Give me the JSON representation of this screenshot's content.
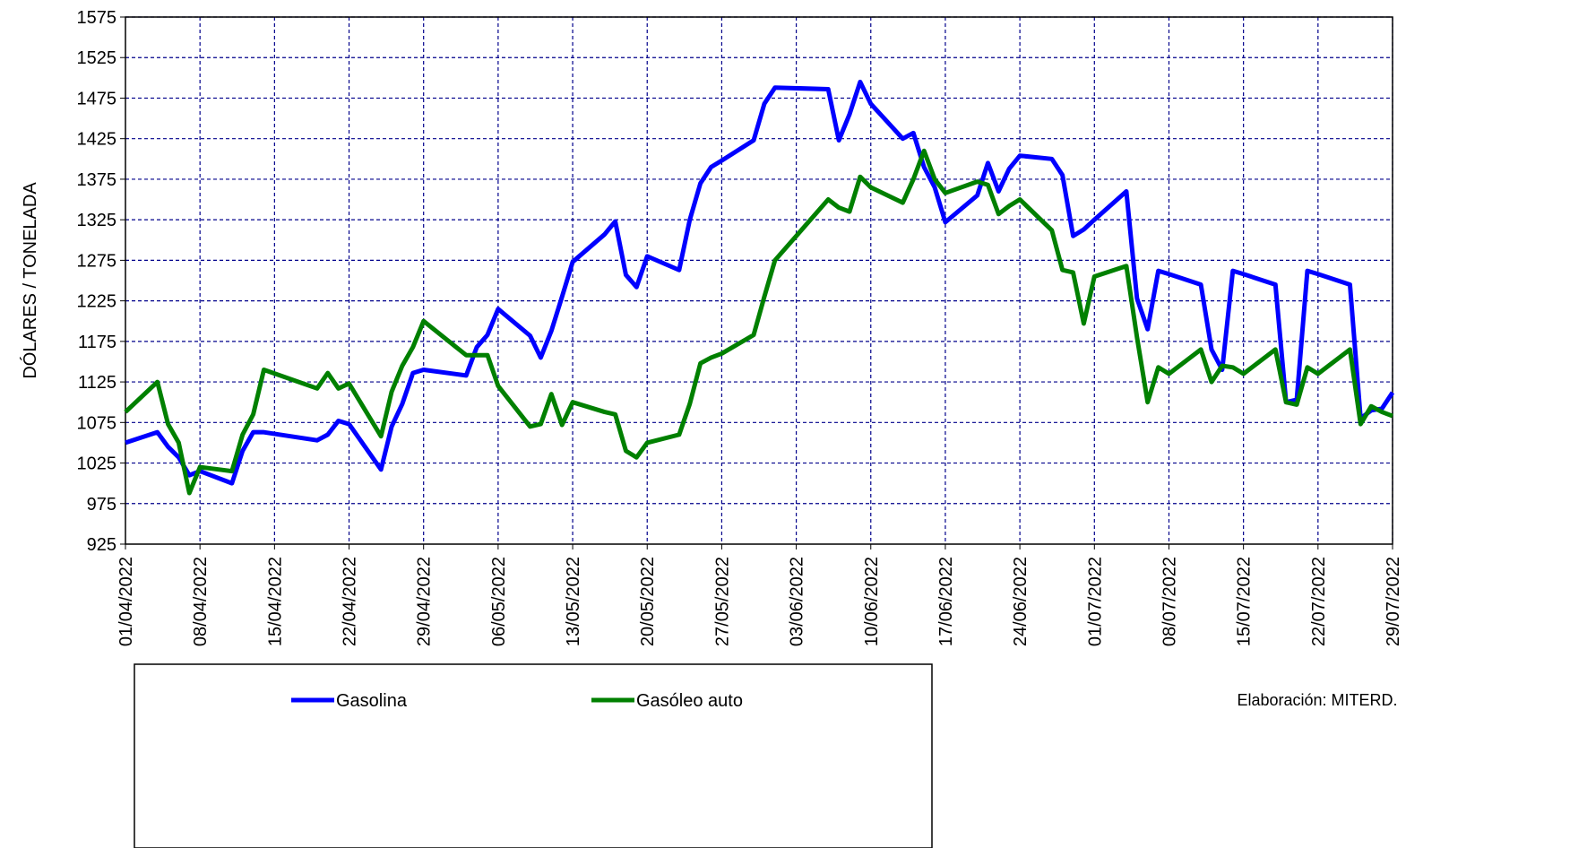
{
  "chart_data": {
    "type": "line",
    "y_label": "DÓLARES / TONELADA",
    "note": "Elaboración:  MITERD.",
    "x": [
      "01/04/2022",
      "04/04/2022",
      "05/04/2022",
      "06/04/2022",
      "07/04/2022",
      "08/04/2022",
      "11/04/2022",
      "12/04/2022",
      "13/04/2022",
      "14/04/2022",
      "19/04/2022",
      "20/04/2022",
      "21/04/2022",
      "22/04/2022",
      "25/04/2022",
      "26/04/2022",
      "27/04/2022",
      "28/04/2022",
      "29/04/2022",
      "03/05/2022",
      "04/05/2022",
      "05/05/2022",
      "06/05/2022",
      "09/05/2022",
      "10/05/2022",
      "11/05/2022",
      "12/05/2022",
      "13/05/2022",
      "16/05/2022",
      "17/05/2022",
      "18/05/2022",
      "19/05/2022",
      "20/05/2022",
      "23/05/2022",
      "24/05/2022",
      "25/05/2022",
      "26/05/2022",
      "27/05/2022",
      "30/05/2022",
      "31/05/2022",
      "01/06/2022",
      "06/06/2022",
      "07/06/2022",
      "08/06/2022",
      "09/06/2022",
      "10/06/2022",
      "13/06/2022",
      "14/06/2022",
      "15/06/2022",
      "16/06/2022",
      "17/06/2022",
      "20/06/2022",
      "21/06/2022",
      "22/06/2022",
      "23/06/2022",
      "24/06/2022",
      "27/06/2022",
      "28/06/2022",
      "29/06/2022",
      "30/06/2022",
      "01/07/2022",
      "04/07/2022",
      "05/07/2022",
      "06/07/2022",
      "07/07/2022",
      "08/07/2022",
      "11/07/2022",
      "12/07/2022",
      "13/07/2022",
      "14/07/2022",
      "15/07/2022",
      "18/07/2022",
      "19/07/2022",
      "20/07/2022",
      "21/07/2022",
      "22/07/2022",
      "25/07/2022",
      "26/07/2022",
      "27/07/2022",
      "28/07/2022",
      "29/07/2022"
    ],
    "series": [
      {
        "name": "Gasolina",
        "color": "#0000ff",
        "values": [
          1050,
          1063,
          1045,
          1032,
          1010,
          1015,
          1000,
          1040,
          1063,
          1063,
          1053,
          1060,
          1077,
          1073,
          1017,
          1070,
          1098,
          1136,
          1140,
          1133,
          1168,
          1183,
          1215,
          1182,
          1155,
          1188,
          1230,
          1273,
          1307,
          1323,
          1257,
          1242,
          1280,
          1263,
          1325,
          1370,
          1390,
          1398,
          1423,
          1468,
          1488,
          1486,
          1423,
          1455,
          1495,
          1468,
          1425,
          1432,
          1390,
          1365,
          1322,
          1355,
          1395,
          1360,
          1388,
          1404,
          1400,
          1380,
          1305,
          1313,
          1325,
          1360,
          1228,
          1190,
          1262,
          1258,
          1245,
          1165,
          1140,
          1262,
          1258,
          1245,
          1100,
          1103,
          1262,
          1258,
          1245,
          1080,
          1090,
          1092,
          1112
        ]
      },
      {
        "name": "Gasóleo auto",
        "color": "#008000",
        "values": [
          1088,
          1125,
          1073,
          1050,
          988,
          1020,
          1015,
          1060,
          1085,
          1140,
          1117,
          1136,
          1117,
          1123,
          1058,
          1113,
          1145,
          1168,
          1200,
          1158,
          1158,
          1158,
          1120,
          1070,
          1073,
          1110,
          1072,
          1100,
          1088,
          1085,
          1040,
          1032,
          1050,
          1060,
          1098,
          1148,
          1155,
          1160,
          1183,
          1230,
          1275,
          1350,
          1340,
          1335,
          1378,
          1365,
          1346,
          1375,
          1410,
          1375,
          1358,
          1372,
          1368,
          1332,
          1342,
          1350,
          1312,
          1263,
          1260,
          1197,
          1255,
          1268,
          1180,
          1100,
          1143,
          1135,
          1165,
          1125,
          1145,
          1143,
          1135,
          1165,
          1100,
          1097,
          1143,
          1135,
          1165,
          1073,
          1095,
          1088,
          1083
        ]
      }
    ],
    "xlim": [
      "01/04/2022",
      "29/07/2022"
    ],
    "xticks": [
      "01/04/2022",
      "08/04/2022",
      "15/04/2022",
      "22/04/2022",
      "29/04/2022",
      "06/05/2022",
      "13/05/2022",
      "20/05/2022",
      "27/05/2022",
      "03/06/2022",
      "10/06/2022",
      "17/06/2022",
      "24/06/2022",
      "01/07/2022",
      "08/07/2022",
      "15/07/2022",
      "22/07/2022",
      "29/07/2022"
    ],
    "ylim": [
      925,
      1575
    ],
    "yticks": [
      925,
      975,
      1025,
      1075,
      1125,
      1175,
      1225,
      1275,
      1325,
      1375,
      1425,
      1475,
      1525,
      1575
    ],
    "grid": true,
    "legend": "bottom"
  }
}
